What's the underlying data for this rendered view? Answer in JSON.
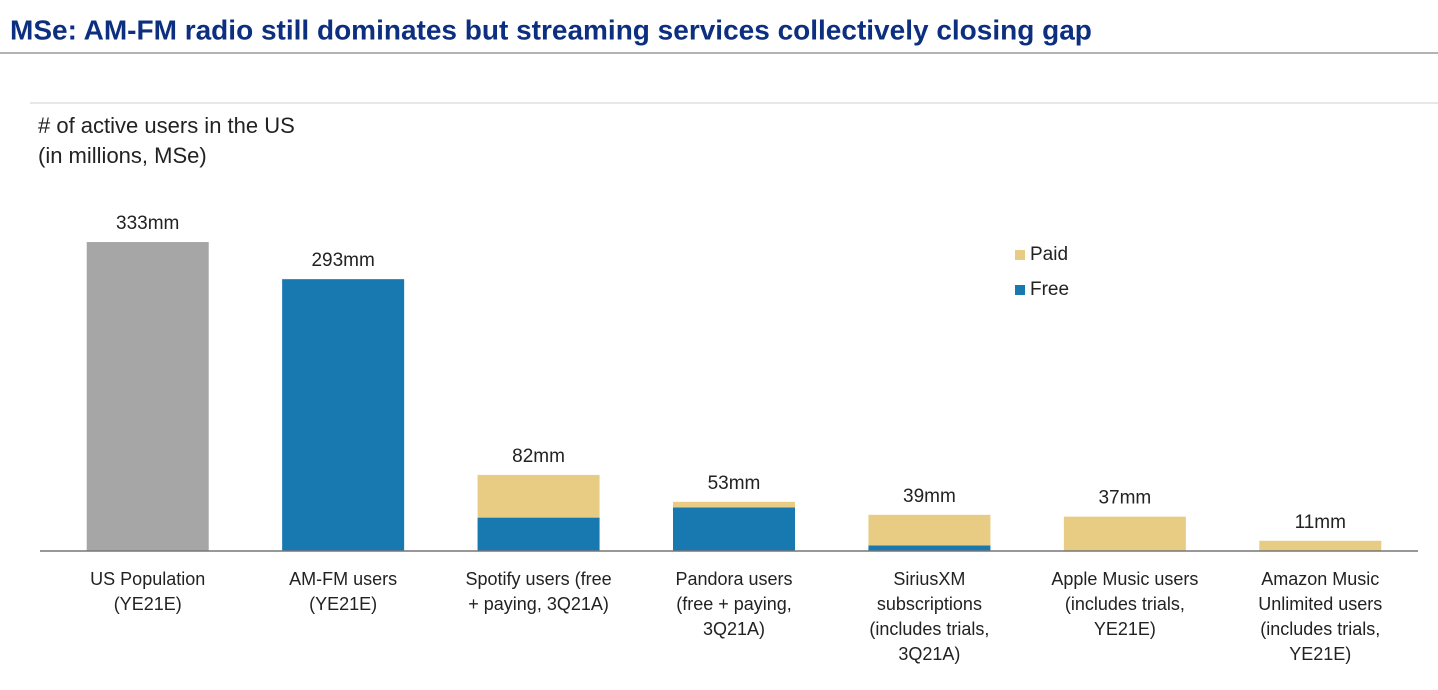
{
  "chart_data": {
    "type": "stacked_bar",
    "title": "MSe: AM-FM radio still dominates but streaming services collectively closing gap",
    "subtitle": [
      "# of active users in the US",
      "(in millions, MSe)"
    ],
    "categories": [
      [
        "US Population",
        "(YE21E)"
      ],
      [
        "AM-FM users",
        "(YE21E)"
      ],
      [
        "Spotify users (free",
        "+ paying, 3Q21A)"
      ],
      [
        "Pandora users",
        "(free + paying,",
        "3Q21A)"
      ],
      [
        "SiriusXM",
        "subscriptions",
        "(includes trials,",
        "3Q21A)"
      ],
      [
        "Apple Music users",
        "(includes trials,",
        "YE21E)"
      ],
      [
        "Amazon Music",
        "Unlimited users",
        "(includes trials,",
        "YE21E)"
      ]
    ],
    "series": [
      {
        "color": "#a6a6a6",
        "values": [
          333,
          null,
          null,
          null,
          null,
          null,
          null
        ]
      },
      {
        "name": "Free",
        "color": "#1878b0",
        "values": [
          null,
          293,
          36,
          47,
          6,
          null,
          null
        ]
      },
      {
        "name": "Paid",
        "color": "#e9cc84",
        "values": [
          null,
          null,
          46,
          6,
          33,
          37,
          11
        ]
      }
    ],
    "totals": [
      333,
      293,
      82,
      53,
      39,
      37,
      11
    ],
    "total_labels": [
      "333mm",
      "293mm",
      "82mm",
      "53mm",
      "39mm",
      "37mm",
      "11mm"
    ],
    "ylim": [
      0,
      360
    ],
    "legend": "upper right"
  }
}
